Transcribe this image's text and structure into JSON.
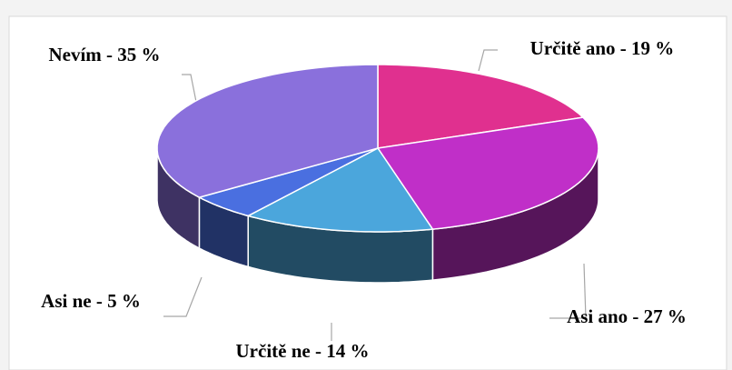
{
  "chart_data": {
    "type": "pie3d",
    "values": [
      19,
      27,
      14,
      5,
      35
    ],
    "value_labels": [
      "Určitě ano - 19 %",
      "Asi ano - 27 %",
      "Určitě ne - 14 %",
      "Asi ne - 5 %",
      "Nevím - 35 %"
    ],
    "colors": [
      "#e0308f",
      "#c02fc8",
      "#4ba6dc",
      "#4a6fe0",
      "#8a70dc"
    ]
  }
}
